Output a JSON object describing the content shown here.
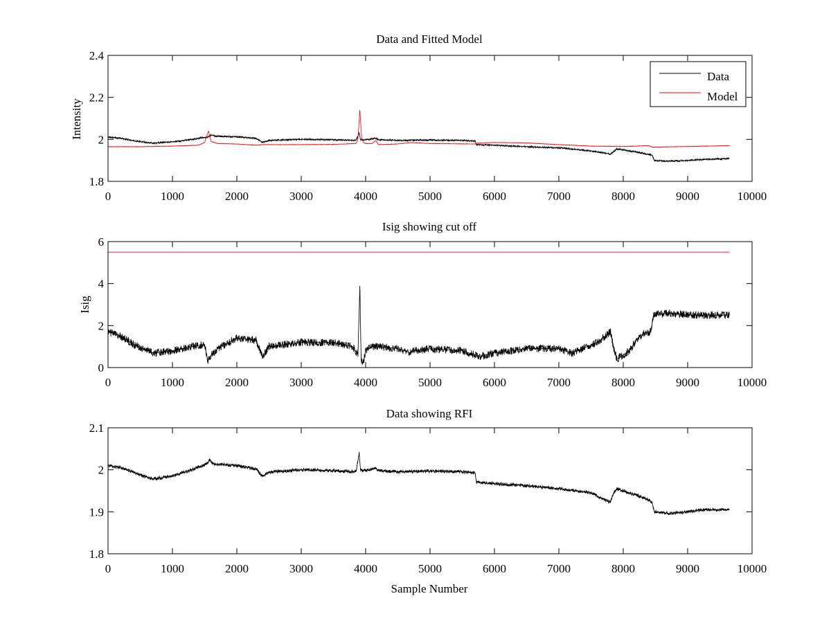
{
  "figure": {
    "background": "#ffffff"
  },
  "chart_data": [
    {
      "type": "line",
      "title": "Data and Fitted Model",
      "xlabel": "",
      "ylabel": "Intensity",
      "xlim": [
        0,
        10000
      ],
      "ylim": [
        1.8,
        2.4
      ],
      "xticks": [
        0,
        1000,
        2000,
        3000,
        4000,
        5000,
        6000,
        7000,
        8000,
        9000,
        10000
      ],
      "yticks": [
        1.8,
        2.0,
        2.2,
        2.4
      ],
      "ytick_labels": [
        "1.8",
        "2",
        "2.2",
        "2.4"
      ],
      "grid": false,
      "legend": "top-right",
      "series": [
        {
          "name": "Data",
          "color": "#000000",
          "noise": 0.004,
          "x": [
            0,
            200,
            400,
            700,
            1000,
            1300,
            1550,
            1600,
            1700,
            2000,
            2300,
            2400,
            2500,
            3000,
            3500,
            3850,
            3900,
            3920,
            3950,
            4000,
            4150,
            4200,
            4500,
            5000,
            5500,
            5700,
            5720,
            6000,
            6500,
            7000,
            7500,
            7800,
            7900,
            8200,
            8400,
            8450,
            8480,
            8700,
            9000,
            9300,
            9650
          ],
          "y": [
            2.012,
            2.005,
            1.993,
            1.982,
            1.988,
            2.0,
            2.012,
            2.02,
            2.015,
            2.012,
            2.005,
            1.985,
            1.995,
            2.0,
            1.998,
            1.995,
            2.03,
            2.0,
            1.998,
            1.998,
            2.005,
            1.998,
            1.995,
            1.997,
            1.995,
            1.993,
            1.975,
            1.972,
            1.965,
            1.96,
            1.945,
            1.93,
            1.955,
            1.94,
            1.928,
            1.925,
            1.9,
            1.896,
            1.9,
            1.905,
            1.908
          ]
        },
        {
          "name": "Model",
          "color": "#ff0000",
          "noise": 0.001,
          "x": [
            0,
            500,
            1000,
            1400,
            1500,
            1560,
            1600,
            1700,
            2000,
            2300,
            2400,
            3000,
            3500,
            3850,
            3880,
            3910,
            3940,
            3970,
            4000,
            4100,
            4160,
            4200,
            4500,
            4700,
            5000,
            5700,
            5720,
            6000,
            6500,
            7000,
            7500,
            8000,
            8400,
            8450,
            9000,
            9650
          ],
          "y": [
            1.965,
            1.965,
            1.968,
            1.972,
            1.985,
            2.04,
            1.99,
            1.98,
            1.978,
            1.972,
            1.975,
            1.975,
            1.976,
            1.98,
            2.0,
            2.14,
            2.0,
            1.985,
            1.98,
            1.98,
            1.995,
            1.975,
            1.978,
            1.985,
            1.98,
            1.978,
            1.982,
            1.985,
            1.983,
            1.975,
            1.968,
            1.966,
            1.97,
            1.963,
            1.966,
            1.97
          ]
        }
      ]
    },
    {
      "type": "line",
      "title": "Isig showing cut off",
      "xlabel": "",
      "ylabel": "Isig",
      "xlim": [
        0,
        10000
      ],
      "ylim": [
        0,
        6
      ],
      "xticks": [
        0,
        1000,
        2000,
        3000,
        4000,
        5000,
        6000,
        7000,
        8000,
        9000,
        10000
      ],
      "yticks": [
        0,
        2,
        4,
        6
      ],
      "ytick_labels": [
        "0",
        "2",
        "4",
        "6"
      ],
      "grid": false,
      "series": [
        {
          "color": "#000000",
          "noise": 0.18,
          "x": [
            0,
            200,
            400,
            700,
            1000,
            1300,
            1500,
            1550,
            1600,
            1700,
            2000,
            2300,
            2400,
            2500,
            3000,
            3500,
            3800,
            3880,
            3910,
            3930,
            3960,
            4000,
            4100,
            4200,
            4500,
            4700,
            4750,
            5000,
            5500,
            5700,
            5750,
            6000,
            6500,
            7000,
            7200,
            7600,
            7800,
            7850,
            7900,
            8000,
            8100,
            8200,
            8300,
            8420,
            8450,
            8470,
            8700,
            9000,
            9300,
            9650
          ],
          "y": [
            1.7,
            1.5,
            1.1,
            0.7,
            0.8,
            1.0,
            1.1,
            0.3,
            0.6,
            0.9,
            1.4,
            1.3,
            0.5,
            1.0,
            1.2,
            1.2,
            1.0,
            0.6,
            3.9,
            0.4,
            0.2,
            0.8,
            1.0,
            1.0,
            0.9,
            0.7,
            0.8,
            0.9,
            0.8,
            0.6,
            0.5,
            0.7,
            0.9,
            0.9,
            0.7,
            1.2,
            1.7,
            1.0,
            0.4,
            0.6,
            0.8,
            1.3,
            1.6,
            1.7,
            2.1,
            2.5,
            2.6,
            2.5,
            2.5,
            2.5
          ]
        },
        {
          "color": "#ff0000",
          "noise": 0,
          "x": [
            0,
            9650
          ],
          "y": [
            5.5,
            5.5
          ]
        }
      ]
    },
    {
      "type": "line",
      "title": "Data showing RFI",
      "xlabel": "Sample Number",
      "ylabel": "",
      "xlim": [
        0,
        10000
      ],
      "ylim": [
        1.8,
        2.1
      ],
      "xticks": [
        0,
        1000,
        2000,
        3000,
        4000,
        5000,
        6000,
        7000,
        8000,
        9000,
        10000
      ],
      "yticks": [
        1.8,
        1.9,
        2.0,
        2.1
      ],
      "ytick_labels": [
        "1.8",
        "1.9",
        "2",
        "2.1"
      ],
      "grid": false,
      "series": [
        {
          "color": "#000000",
          "noise": 0.004,
          "x": [
            0,
            200,
            400,
            700,
            1000,
            1300,
            1550,
            1580,
            1620,
            1700,
            2000,
            2300,
            2400,
            2500,
            3000,
            3500,
            3850,
            3900,
            3920,
            3950,
            4000,
            4150,
            4200,
            4500,
            5000,
            5500,
            5700,
            5720,
            6000,
            6500,
            7000,
            7500,
            7800,
            7850,
            7900,
            8200,
            8400,
            8450,
            8480,
            8700,
            9000,
            9300,
            9650
          ],
          "y": [
            2.01,
            2.005,
            1.993,
            1.978,
            1.985,
            2.0,
            2.015,
            2.025,
            2.015,
            2.013,
            2.01,
            2.002,
            1.985,
            1.995,
            2.0,
            1.998,
            1.995,
            2.04,
            2.0,
            1.998,
            1.998,
            2.003,
            1.998,
            1.995,
            1.997,
            1.995,
            1.993,
            1.97,
            1.967,
            1.962,
            1.955,
            1.945,
            1.922,
            1.945,
            1.955,
            1.94,
            1.928,
            1.922,
            1.9,
            1.896,
            1.9,
            1.905,
            1.905
          ]
        }
      ]
    }
  ]
}
